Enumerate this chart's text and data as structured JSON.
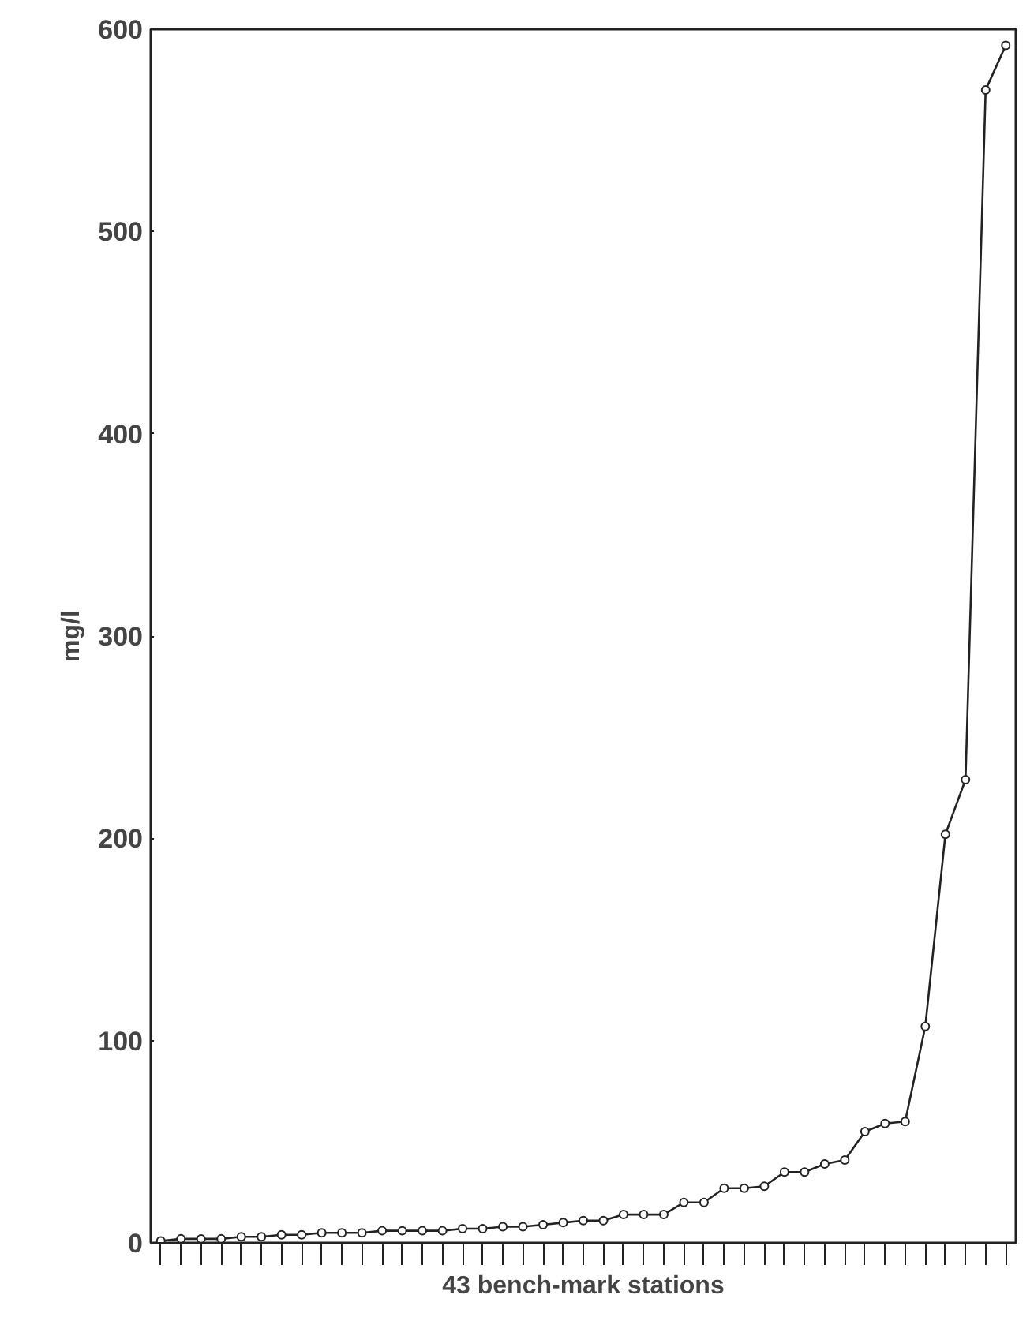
{
  "chart_data": {
    "type": "line",
    "xlabel": "43 bench-mark stations",
    "ylabel": "mg/l",
    "categories": [
      null,
      null,
      null,
      null,
      null,
      null,
      null,
      null,
      null,
      null,
      null,
      null,
      null,
      null,
      null,
      null,
      null,
      null,
      null,
      null,
      null,
      null,
      null,
      null,
      null,
      null,
      null,
      null,
      null,
      null,
      null,
      null,
      null,
      null,
      null,
      null,
      null,
      null,
      null,
      null,
      null,
      null,
      null
    ],
    "series": [
      {
        "color": "#222222",
        "values": [
          1,
          2,
          2,
          2,
          3,
          3,
          4,
          4,
          5,
          5,
          5,
          6,
          6,
          6,
          6,
          7,
          7,
          8,
          8,
          9,
          10,
          11,
          11,
          14,
          14,
          14,
          20,
          20,
          27,
          27,
          28,
          35,
          35,
          39,
          41,
          55,
          59,
          60,
          107,
          202,
          229,
          570,
          592
        ]
      }
    ],
    "ylim": [
      0,
      600
    ],
    "yticks": [
      0,
      100,
      200,
      300,
      400,
      500,
      600
    ],
    "tick_labels": "y",
    "grid": false,
    "marker": "circle",
    "line_style": "solid"
  }
}
